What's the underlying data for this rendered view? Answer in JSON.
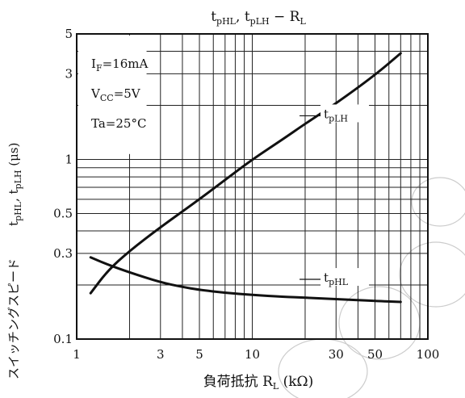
{
  "chart_data": {
    "type": "line",
    "title": {
      "t1": "t",
      "s1": "pHL",
      "sep1": ", ",
      "t2": "t",
      "s2": "pLH",
      "sep2": "  −  ",
      "t3": "R",
      "s3": "L"
    },
    "xlabel": {
      "jp": "負荷抵抗",
      "sym": "R",
      "sub": "L",
      "unit": "(kΩ)"
    },
    "ylabel": {
      "jp": "スイッチングスピード",
      "t1": "t",
      "s1": "pHL",
      "sep": ", ",
      "t2": "t",
      "s2": "pLH",
      "unit": "(μs)"
    },
    "x_scale": "log",
    "y_scale": "log",
    "xlim": [
      1,
      100
    ],
    "ylim": [
      0.1,
      5
    ],
    "x_tick_labels": [
      {
        "value": 1,
        "label": "1"
      },
      {
        "value": 3,
        "label": "3"
      },
      {
        "value": 5,
        "label": "5"
      },
      {
        "value": 10,
        "label": "10"
      },
      {
        "value": 30,
        "label": "30"
      },
      {
        "value": 50,
        "label": "50"
      },
      {
        "value": 100,
        "label": "100"
      }
    ],
    "y_tick_labels": [
      {
        "value": 0.1,
        "label": "0.1"
      },
      {
        "value": 0.3,
        "label": "0.3"
      },
      {
        "value": 0.5,
        "label": "0.5"
      },
      {
        "value": 1,
        "label": "1"
      },
      {
        "value": 3,
        "label": "3"
      },
      {
        "value": 5,
        "label": "5"
      }
    ],
    "conditions": [
      {
        "main": "I",
        "sub": "F",
        "rest": "=16mA"
      },
      {
        "main": "V",
        "sub": "CC",
        "rest": "=5V"
      },
      {
        "main": "Ta",
        "sub": "",
        "rest": "=25°C"
      }
    ],
    "series": [
      {
        "name": "t",
        "name_sub": "pLH",
        "label_at": {
          "x": 25,
          "y": 1.75
        },
        "x": [
          1.2,
          1.5,
          2,
          3,
          5,
          7,
          10,
          15,
          20,
          30,
          50,
          70
        ],
        "y": [
          0.18,
          0.24,
          0.31,
          0.42,
          0.6,
          0.77,
          1.0,
          1.3,
          1.58,
          2.05,
          2.95,
          3.9
        ]
      },
      {
        "name": "t",
        "name_sub": "pHL",
        "label_at": {
          "x": 25,
          "y": 0.215
        },
        "x": [
          1.2,
          1.5,
          2,
          3,
          4,
          5,
          7,
          10,
          15,
          20,
          30,
          50,
          70
        ],
        "y": [
          0.285,
          0.26,
          0.235,
          0.207,
          0.195,
          0.188,
          0.181,
          0.176,
          0.172,
          0.17,
          0.167,
          0.163,
          0.161
        ]
      }
    ],
    "grid": true
  }
}
